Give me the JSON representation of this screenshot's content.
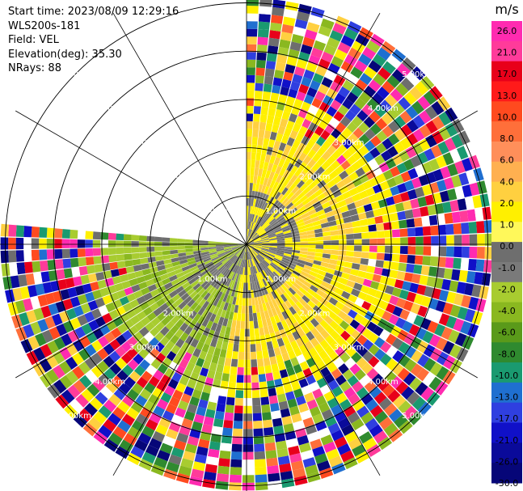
{
  "header": {
    "start_time": "Start time: 2023/08/09 12:29:16",
    "instrument": "WLS200s-181",
    "field": "Field: VEL",
    "elevation": "Elevation(deg): 35.30",
    "nrays": "NRays: 88"
  },
  "colorbar": {
    "unit": "m/s",
    "ticks": [
      "26.0",
      "21.0",
      "17.0",
      "13.0",
      "10.0",
      "8.0",
      "6.0",
      "4.0",
      "2.0",
      "1.0",
      "0.0",
      "-1.0",
      "-2.0",
      "-4.0",
      "-6.0",
      "-8.0",
      "-10.0",
      "-13.0",
      "-17.0",
      "-21.0",
      "-26.0",
      "-30.0"
    ],
    "colors": [
      "#ff2bb0",
      "#ff3b9a",
      "#e8001a",
      "#ff1a1a",
      "#ff4a1f",
      "#ff6f3a",
      "#ff8f5a",
      "#ffb050",
      "#ffd040",
      "#fff000",
      "#fff85a",
      "#6e6e6e",
      "#7a7a7a",
      "#a8cc30",
      "#8ab820",
      "#5a9a1a",
      "#2f8a2f",
      "#1a9a70",
      "#1f6fd0",
      "#2f3fe0",
      "#1010c8",
      "#0a0a9a",
      "#060678"
    ]
  },
  "chart_data": {
    "type": "ppi",
    "title": "",
    "field": "VEL",
    "units": "m/s",
    "elevation_deg": 35.3,
    "nrays": 88,
    "range_rings_km": [
      {
        "label": "1.00km"
      },
      {
        "label": "2.00km"
      },
      {
        "label": "3.00km"
      },
      {
        "label": "4.00km"
      },
      {
        "label": "5.00km"
      }
    ],
    "azimuth_spokes_deg": [
      0,
      30,
      60,
      90,
      120,
      150,
      180,
      210,
      240,
      270,
      300,
      330
    ],
    "sector_coverage_deg": [
      0,
      275
    ],
    "velocity_regions": [
      {
        "region": "near-field east",
        "dominant_range": [
          1.0,
          6.0
        ],
        "color": "yellow"
      },
      {
        "region": "near-field south-west",
        "dominant_range": [
          -4.0,
          -1.0
        ],
        "color": "green"
      },
      {
        "region": "near-field center",
        "dominant_range": [
          -1.0,
          1.0
        ],
        "color": "gray"
      },
      {
        "region": "far-field",
        "dominant_range": [
          -30.0,
          26.0
        ],
        "color": "noise"
      }
    ]
  }
}
